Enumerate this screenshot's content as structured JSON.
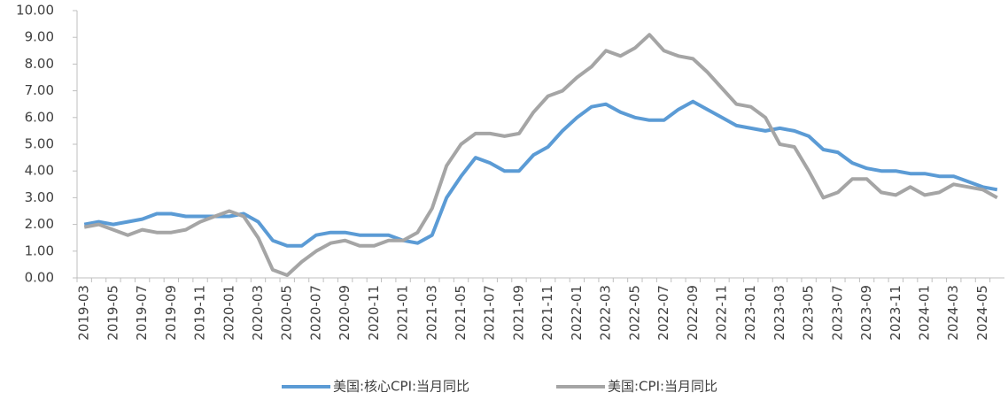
{
  "chart_data": {
    "type": "line",
    "categories": [
      "2019-03",
      null,
      "2019-05",
      null,
      "2019-07",
      null,
      "2019-09",
      null,
      "2019-11",
      null,
      "2020-01",
      null,
      "2020-03",
      null,
      "2020-05",
      null,
      "2020-07",
      null,
      "2020-09",
      null,
      "2020-11",
      null,
      "2021-01",
      null,
      "2021-03",
      null,
      "2021-05",
      null,
      "2021-07",
      null,
      "2021-09",
      null,
      "2021-11",
      null,
      "2022-01",
      null,
      "2022-03",
      null,
      "2022-05",
      null,
      "2022-07",
      null,
      "2022-09",
      null,
      "2022-11",
      null,
      "2023-01",
      null,
      "2023-03",
      null,
      "2023-05",
      null,
      "2023-07",
      null,
      "2023-09",
      null,
      "2023-11",
      null,
      "2024-01",
      null,
      "2024-03",
      null,
      "2024-05",
      null
    ],
    "series": [
      {
        "name": "美国:核心CPI:当月同比",
        "color": "#5b9bd5",
        "values": [
          2.0,
          2.1,
          2.0,
          2.1,
          2.2,
          2.4,
          2.4,
          2.3,
          2.3,
          2.3,
          2.3,
          2.4,
          2.1,
          1.4,
          1.2,
          1.2,
          1.6,
          1.7,
          1.7,
          1.6,
          1.6,
          1.6,
          1.4,
          1.3,
          1.6,
          3.0,
          3.8,
          4.5,
          4.3,
          4.0,
          4.0,
          4.6,
          4.9,
          5.5,
          6.0,
          6.4,
          6.5,
          6.2,
          6.0,
          5.9,
          5.9,
          6.3,
          6.6,
          6.3,
          6.0,
          5.7,
          5.6,
          5.5,
          5.6,
          5.5,
          5.3,
          4.8,
          4.7,
          4.3,
          4.1,
          4.0,
          4.0,
          3.9,
          3.9,
          3.8,
          3.8,
          3.6,
          3.4,
          3.3
        ]
      },
      {
        "name": "美国:CPI:当月同比",
        "color": "#a5a5a5",
        "values": [
          1.9,
          2.0,
          1.8,
          1.6,
          1.8,
          1.7,
          1.7,
          1.8,
          2.1,
          2.3,
          2.5,
          2.3,
          1.5,
          0.3,
          0.1,
          0.6,
          1.0,
          1.3,
          1.4,
          1.2,
          1.2,
          1.4,
          1.4,
          1.7,
          2.6,
          4.2,
          5.0,
          5.4,
          5.4,
          5.3,
          5.4,
          6.2,
          6.8,
          7.0,
          7.5,
          7.9,
          8.5,
          8.3,
          8.6,
          9.1,
          8.5,
          8.3,
          8.2,
          7.7,
          7.1,
          6.5,
          6.4,
          6.0,
          5.0,
          4.9,
          4.0,
          3.0,
          3.2,
          3.7,
          3.7,
          3.2,
          3.1,
          3.4,
          3.1,
          3.2,
          3.5,
          3.4,
          3.3,
          3.0
        ]
      }
    ],
    "ylim": [
      0,
      10
    ],
    "yticks": [
      {
        "value": 0,
        "label": "0.00"
      },
      {
        "value": 1,
        "label": "1.00"
      },
      {
        "value": 2,
        "label": "2.00"
      },
      {
        "value": 3,
        "label": "3.00"
      },
      {
        "value": 4,
        "label": "4.00"
      },
      {
        "value": 5,
        "label": "5.00"
      },
      {
        "value": 6,
        "label": "6.00"
      },
      {
        "value": 7,
        "label": "7.00"
      },
      {
        "value": 8,
        "label": "8.00"
      },
      {
        "value": 9,
        "label": "9.00"
      },
      {
        "value": 10,
        "label": "10.00"
      }
    ],
    "grid": false,
    "legend": "bottom"
  }
}
